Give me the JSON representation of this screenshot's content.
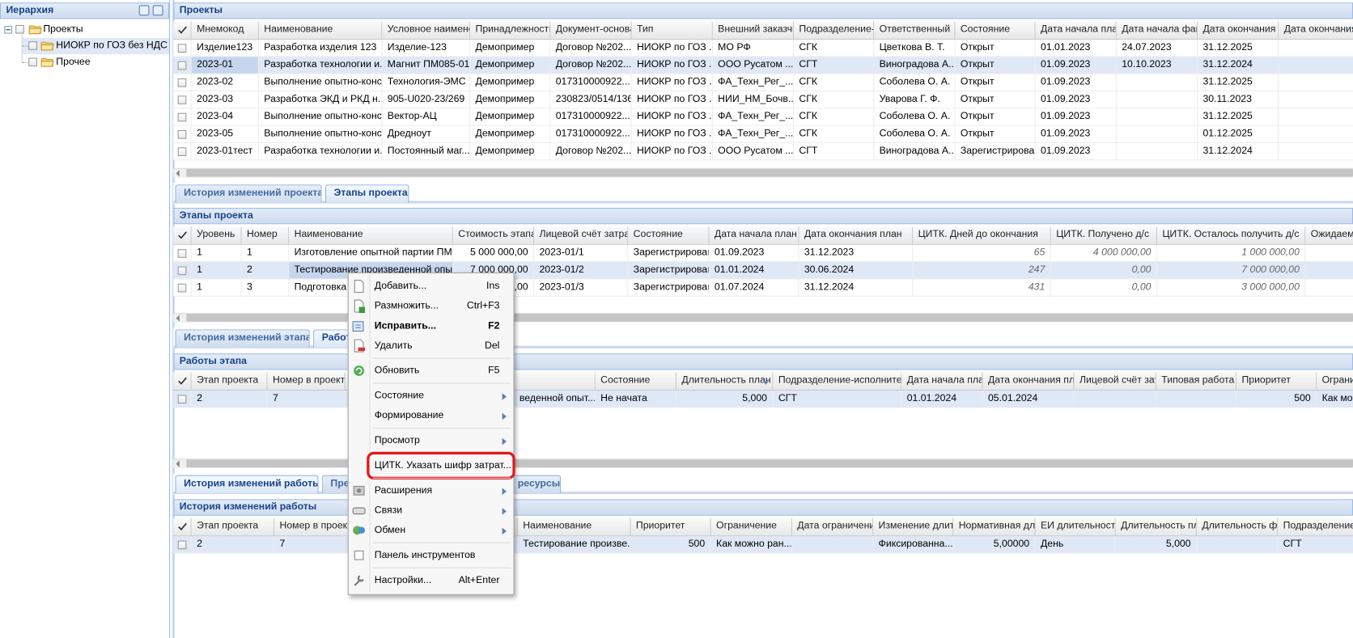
{
  "hierarchy": {
    "title": "Иерархия",
    "tree": [
      "Проекты",
      "НИОКР по ГОЗ без НДС",
      "Прочее"
    ]
  },
  "projects": {
    "title": "Проекты",
    "columns": [
      "Мнемокод",
      "Наименование",
      "Условное наименова",
      "Принадлежность",
      "Документ-основан",
      "Тип",
      "Внешний заказчик",
      "Подразделение-от",
      "Ответственный",
      "Состояние",
      "Дата начала план.",
      "Дата начала факт",
      "Дата окончания пл",
      "Дата окончания"
    ],
    "rows": [
      [
        "Изделие123",
        "Разработка изделия 123",
        "Изделие-123",
        "Демопример",
        "Договор №202...",
        "НИОКР по ГОЗ ...",
        "МО РФ",
        "СГК",
        "Цветкова В. Т.",
        "Открыт",
        "01.01.2023",
        "24.07.2023",
        "31.12.2025"
      ],
      [
        "2023-01",
        "Разработка технологии и...",
        "Магнит ПМ085-01",
        "Демопример",
        "Договор №202...",
        "НИОКР по ГОЗ ...",
        "ООО Русатом ...",
        "СГТ",
        "Виноградова А...",
        "Открыт",
        "01.09.2023",
        "10.10.2023",
        "31.12.2024"
      ],
      [
        "2023-02",
        "Выполнение опытно-конс...",
        "Технология-ЭМС",
        "Демопример",
        "017310000922...",
        "НИОКР по ГОЗ ...",
        "ФА_Техн_Рег_...",
        "СГК",
        "Соболева О. А.",
        "Открыт",
        "01.09.2023",
        null,
        "31.12.2025"
      ],
      [
        "2023-03",
        "Разработка ЭКД и РКД н...",
        "905-U020-23/269",
        "Демопример",
        "230823/0514/136",
        "НИОКР по ГОЗ ...",
        "НИИ_НМ_Бочв...",
        "СГК",
        "Уварова Г. Ф.",
        "Открыт",
        "01.09.2023",
        null,
        "30.11.2023"
      ],
      [
        "2023-04",
        "Выполнение опытно-конс...",
        "Вектор-АЦ",
        "Демопример",
        "017310000922...",
        "НИОКР по ГОЗ ...",
        "ФА_Техн_Рег_...",
        "СГК",
        "Соболева О. А.",
        "Открыт",
        "01.09.2023",
        null,
        "31.12.2025"
      ],
      [
        "2023-05",
        "Выполнение опытно-конс...",
        "Дредноут",
        "Демопример",
        "017310000922...",
        "НИОКР по ГОЗ ...",
        "ФА_Техн_Рег_...",
        "СГК",
        "Соболева О. А.",
        "Открыт",
        "01.09.2023",
        null,
        "01.12.2025"
      ],
      [
        "2023-01тест",
        "Разработка технологии и...",
        "Постоянный маг...",
        "Демопример",
        "Договор №202...",
        "НИОКР по ГОЗ ...",
        "ООО Русатом ...",
        "СГТ",
        "Виноградова А...",
        "Зарегистрирован",
        "01.09.2023",
        null,
        "31.12.2024"
      ]
    ]
  },
  "project_tabs": [
    "История изменений проекта",
    "Этапы проекта"
  ],
  "stages": {
    "title": "Этапы проекта",
    "columns": [
      "Уровень",
      "Номер",
      "Наименование",
      "Стоимость этапа",
      "Лицевой счёт затрат",
      "Состояние",
      "Дата начала план",
      "Дата окончания план",
      "ЦИТК. Дней до окончания",
      "ЦИТК. Получено д/с",
      "ЦИТК. Осталось получить д/с",
      "Ожидаем"
    ],
    "rows": [
      [
        "1",
        "1",
        "Изготовление опытной партии ПМ0...",
        "5 000 000,00",
        "2023-01/1",
        "Зарегистрирован",
        "01.09.2023",
        "31.12.2023",
        "65",
        "4 000 000,00",
        "1 000 000,00"
      ],
      [
        "1",
        "2",
        "Тестирование произведенной опыт...",
        "7 000 000,00",
        "2023-01/2",
        "Зарегистрирован",
        "01.01.2024",
        "30.06.2024",
        "247",
        "0,00",
        "7 000 000,00"
      ],
      [
        "1",
        "3",
        "Подготовка т",
        "3 000 000,00",
        "2023-01/3",
        "Зарегистрирован",
        "01.07.2024",
        "31.12.2024",
        "431",
        "0,00",
        "3 000 000,00"
      ]
    ]
  },
  "stage_tabs": [
    "История изменений этапа",
    "Работы этапа"
  ],
  "works": {
    "title": "Работы этапа",
    "columns": [
      "Этап проекта",
      "Номер в проекте",
      null,
      null,
      "Состояние",
      "Длительность план",
      "Подразделение-исполнитель...",
      "Дата начала план.",
      "Дата окончания план",
      "Лицевой счёт затр",
      "Типовая работа",
      "Приоритет",
      "Ограни"
    ],
    "rows": [
      [
        "2",
        "7",
        null,
        "веденной опыт...",
        "Не начата",
        "5,000",
        "СГТ",
        "01.01.2024",
        "05.01.2024",
        null,
        null,
        "500",
        "Как мо"
      ]
    ]
  },
  "work_tabs": [
    "История изменений работы",
    "Пре",
    "ресурсы"
  ],
  "work_history": {
    "title": "История изменений работы",
    "columns": [
      "Этап проекта",
      "Номер в проекте",
      null,
      "Наименование",
      "Приоритет",
      "Ограничение",
      "Дата ограничения",
      "Изменение длител",
      "Нормативная длит",
      "ЕИ длительности",
      "Длительность пла",
      "Длительность фак",
      "Подразделение-и"
    ],
    "rows": [
      [
        "2",
        "7",
        null,
        "Тестирование произве...",
        "500",
        "Как можно ран...",
        null,
        "Фиксированна...",
        "5,00000",
        "День",
        "5,000",
        null,
        "СГТ"
      ]
    ]
  },
  "context_menu": [
    {
      "label": "Добавить...",
      "shortcut": "Ins"
    },
    {
      "label": "Размножить...",
      "shortcut": "Ctrl+F3"
    },
    {
      "label": "Исправить...",
      "shortcut": "F2",
      "bold": true
    },
    {
      "label": "Удалить",
      "shortcut": "Del"
    },
    {
      "label": "Обновить",
      "shortcut": "F5",
      "separator_before": true
    },
    {
      "label": "Состояние",
      "submenu": true,
      "separator_before": true
    },
    {
      "label": "Формирование",
      "submenu": true
    },
    {
      "label": "Просмотр",
      "submenu": true,
      "separator_before": true
    },
    {
      "label": "ЦИТК. Указать шифр затрат...",
      "highlighted": true,
      "separator_before": true
    },
    {
      "label": "Расширения",
      "submenu": true,
      "separator_before": true
    },
    {
      "label": "Связи",
      "submenu": true
    },
    {
      "label": "Обмен",
      "submenu": true
    },
    {
      "label": "Панель инструментов",
      "separator_before": true
    },
    {
      "label": "Настройки...",
      "shortcut": "Alt+Enter",
      "separator_before": true
    }
  ]
}
